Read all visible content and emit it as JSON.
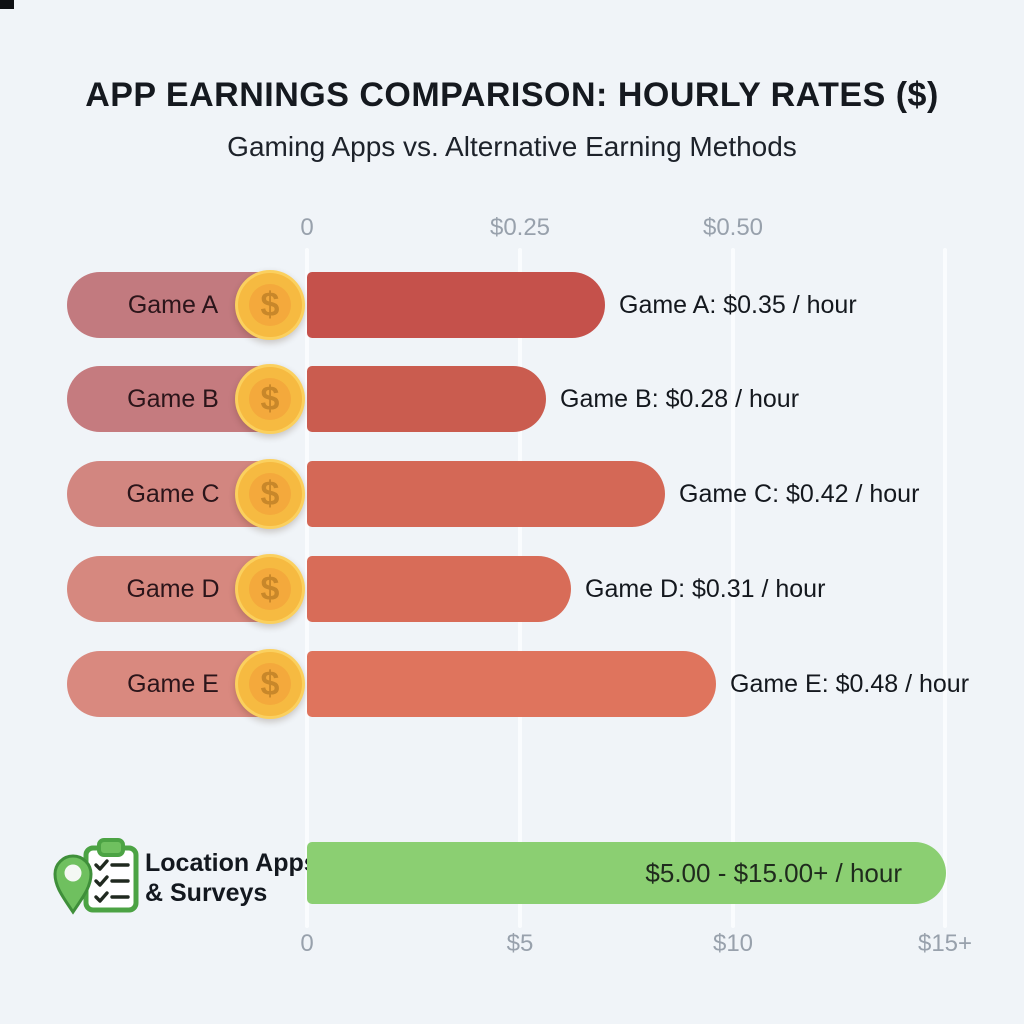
{
  "title": "APP EARNINGS COMPARISON: HOURLY RATES ($)",
  "subtitle": "Gaming Apps vs. Alternative Earning Methods",
  "coin_symbol": "$",
  "colors": {
    "background": "#f0f4f8",
    "gridline": "#fafcfe",
    "axis_text": "#98a1ac",
    "title_text": "#15191f",
    "green_bar": "#8bcf72",
    "icon_green": "#6fc05f",
    "icon_green_stroke": "#4ca344",
    "coin_outer": "#fbd05e",
    "coin_ring": "#f6ba41",
    "coin_face": "#f4a93c",
    "coin_symbol_color": "#c8872a"
  },
  "top_axis": {
    "ticks": [
      "0",
      "$0.25",
      "$0.50"
    ]
  },
  "bottom_axis": {
    "ticks": [
      "0",
      "$5",
      "$10",
      "$15+"
    ]
  },
  "games": [
    {
      "name": "Game A",
      "rate": 0.35,
      "value_label": "Game A: $0.35 / hour",
      "pill_color": "#c27a7f",
      "bar_color": "#c5514b"
    },
    {
      "name": "Game B",
      "rate": 0.28,
      "value_label": "Game B: $0.28 / hour",
      "pill_color": "#c57b7f",
      "bar_color": "#ca5c4f"
    },
    {
      "name": "Game C",
      "rate": 0.42,
      "value_label": "Game C: $0.42 / hour",
      "pill_color": "#d28680",
      "bar_color": "#d46856"
    },
    {
      "name": "Game D",
      "rate": 0.31,
      "value_label": "Game D: $0.31 / hour",
      "pill_color": "#d6887f",
      "bar_color": "#d86c58"
    },
    {
      "name": "Game E",
      "rate": 0.48,
      "value_label": "Game E: $0.48 / hour",
      "pill_color": "#d9897f",
      "bar_color": "#df745d"
    }
  ],
  "alternative": {
    "label_line1": "Location Apps",
    "label_line2": "& Surveys",
    "bar_label": "$5.00 - $15.00+ / hour",
    "min_rate": 5,
    "max_rate": 15,
    "bar_color": "#8bcf72"
  },
  "chart_data": [
    {
      "type": "bar",
      "orientation": "horizontal",
      "title": "APP EARNINGS COMPARISON: HOURLY RATES ($)",
      "subtitle": "Gaming Apps vs. Alternative Earning Methods",
      "categories": [
        "Game A",
        "Game B",
        "Game C",
        "Game D",
        "Game E"
      ],
      "values": [
        0.35,
        0.28,
        0.42,
        0.31,
        0.48
      ],
      "unit": "$ per hour",
      "xlabel": "Hourly rate ($)",
      "xlim": [
        0,
        0.75
      ],
      "x_ticks": [
        "0",
        "$0.25",
        "$0.50"
      ],
      "grid": true,
      "annotations": [
        "Game A: $0.35 / hour",
        "Game B: $0.28 / hour",
        "Game C: $0.42 / hour",
        "Game D: $0.31 / hour",
        "Game E: $0.48 / hour"
      ]
    },
    {
      "type": "bar",
      "orientation": "horizontal",
      "categories": [
        "Location Apps & Surveys"
      ],
      "values": [
        15
      ],
      "value_range_low": 5,
      "value_range_high": 15,
      "unit": "$ per hour",
      "xlim": [
        0,
        15
      ],
      "x_ticks": [
        "0",
        "$5",
        "$10",
        "$15+"
      ],
      "grid": true,
      "annotations": [
        "$5.00 - $15.00+ / hour"
      ]
    }
  ]
}
